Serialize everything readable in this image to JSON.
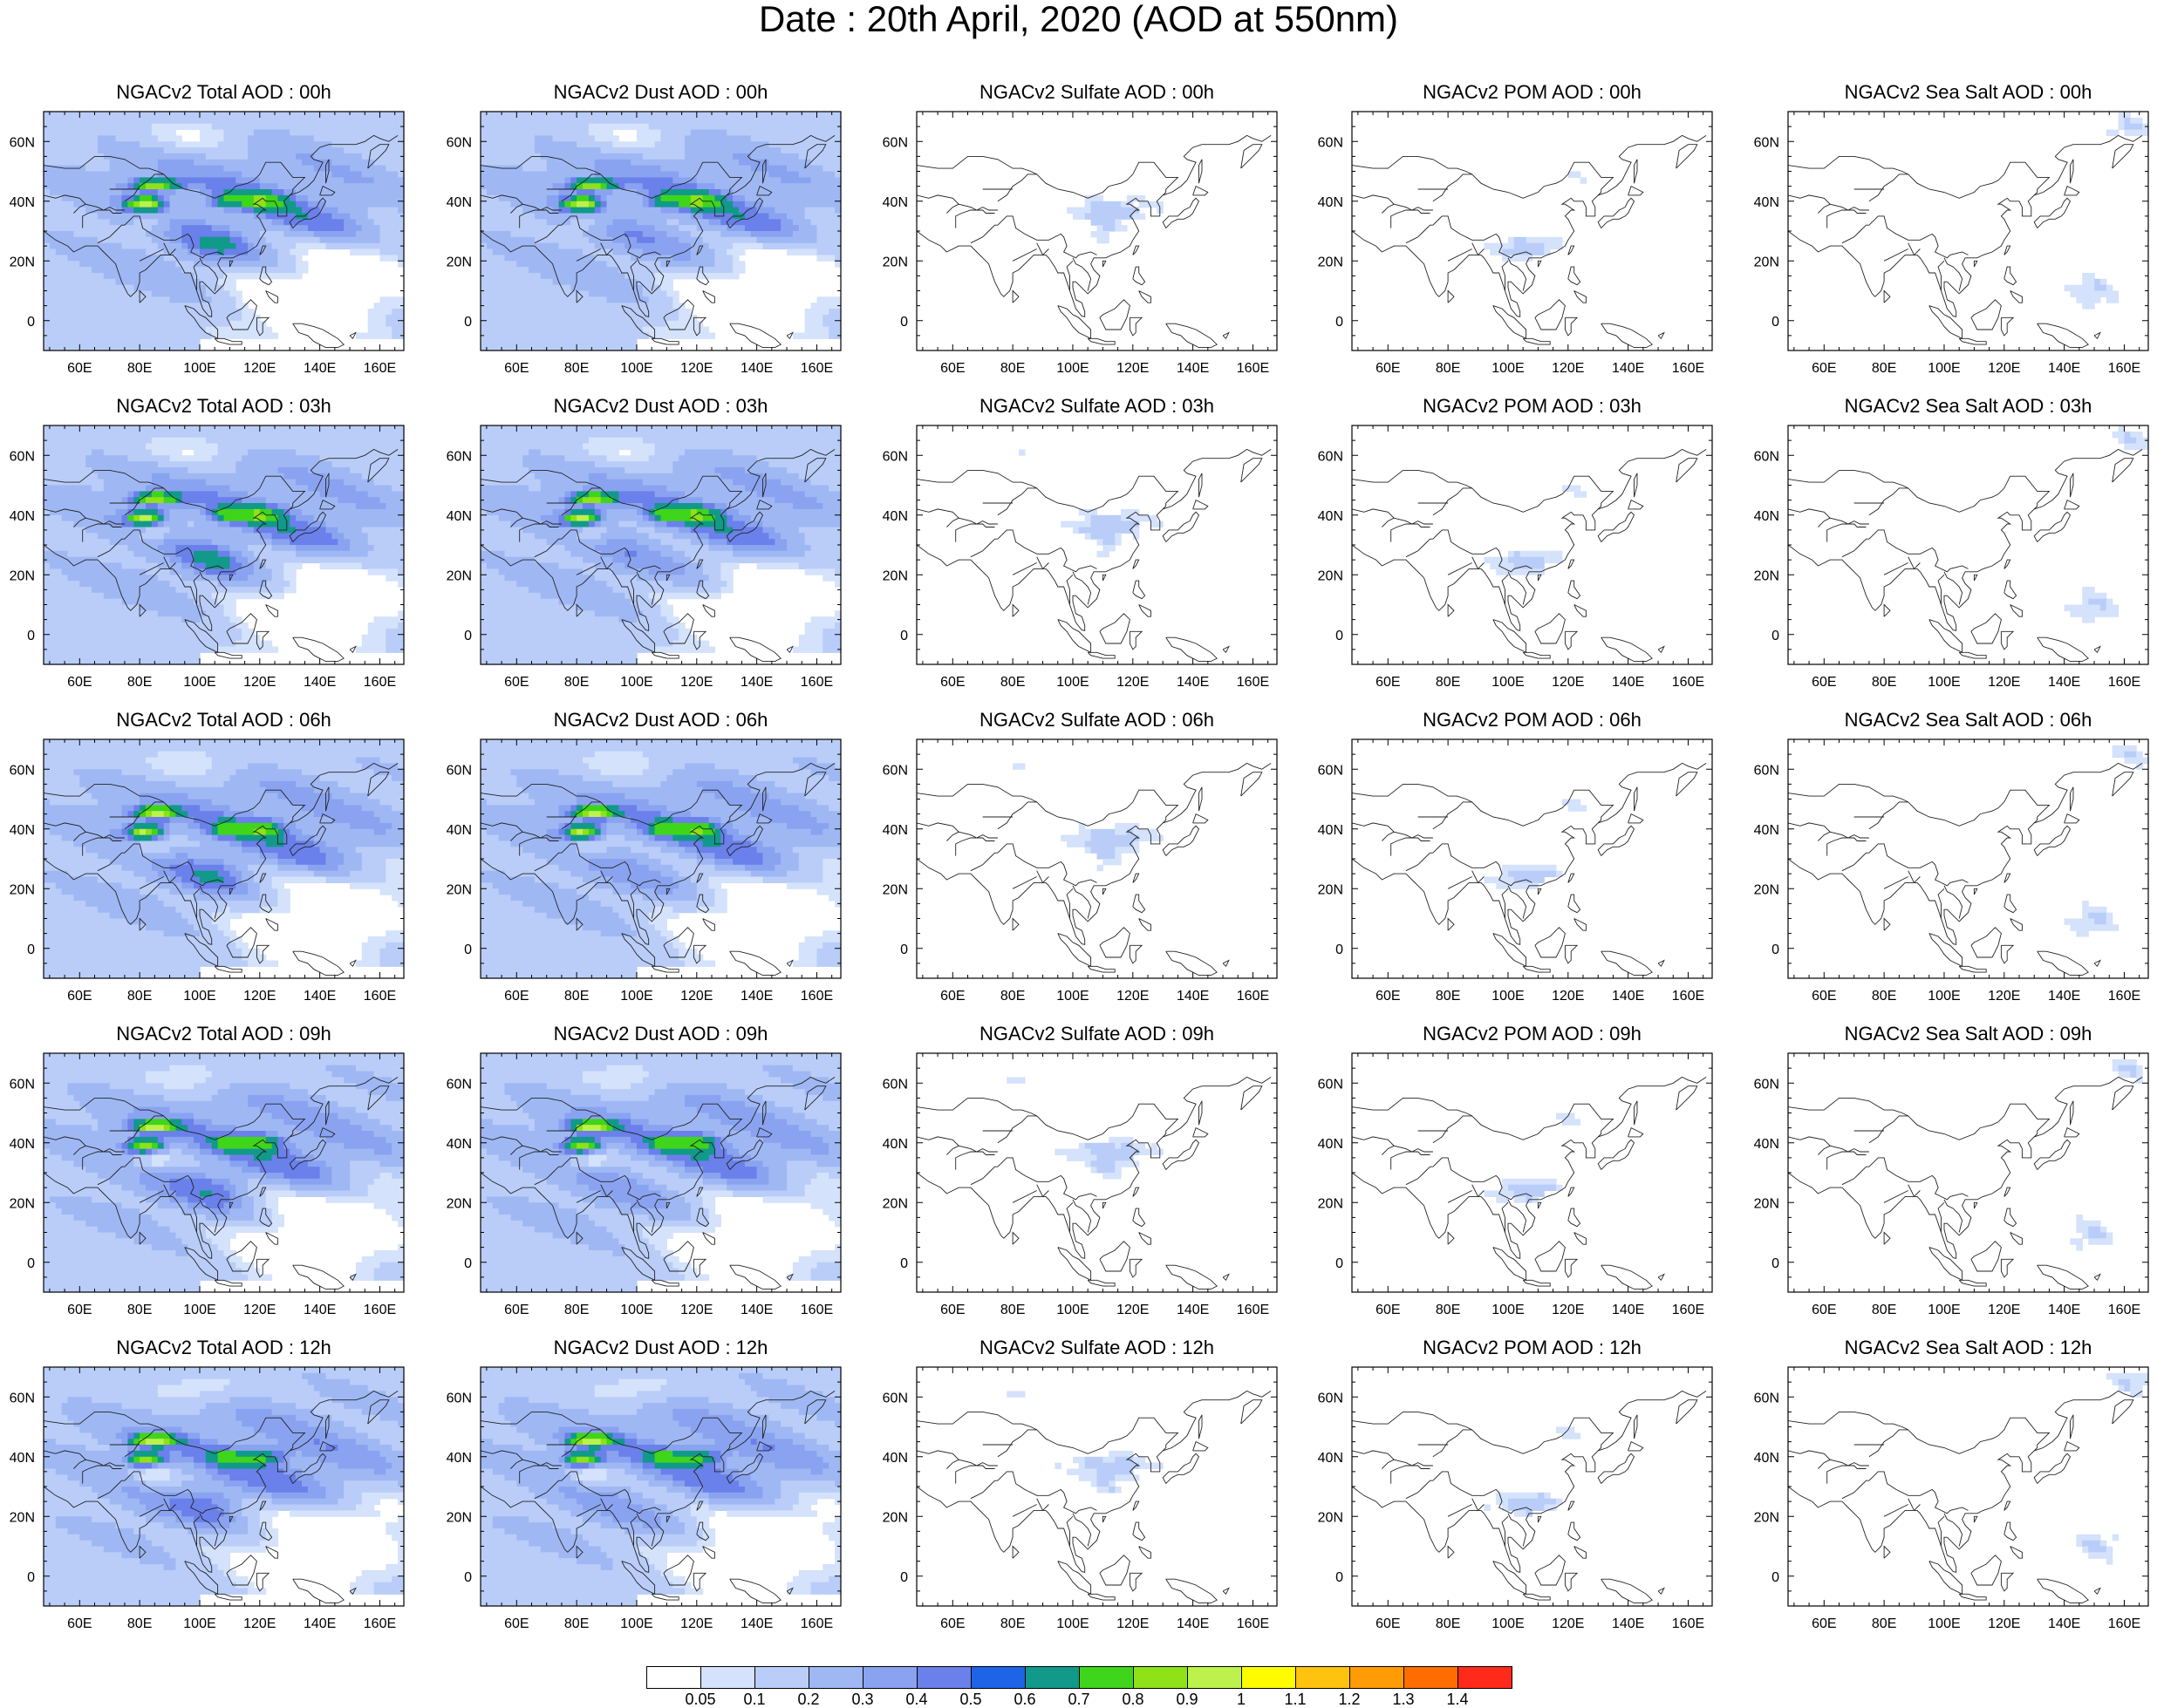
{
  "title": "Date : 20th April, 2020 (AOD at 550nm)",
  "colorbar": {
    "labels": [
      "0.05",
      "0.1",
      "0.2",
      "0.3",
      "0.4",
      "0.5",
      "0.6",
      "0.7",
      "0.8",
      "0.9",
      "1",
      "1.1",
      "1.2",
      "1.3",
      "1.4"
    ],
    "colors": [
      "#ffffff",
      "#d4e2fb",
      "#b9cdf8",
      "#9fb8f4",
      "#8aa3f0",
      "#6a80ea",
      "#1e64e6",
      "#11998a",
      "#3fd51a",
      "#8ee217",
      "#bdf24c",
      "#fffc00",
      "#ffc20f",
      "#ff9b05",
      "#ff6d00",
      "#ff2a1a"
    ]
  },
  "axes": {
    "lon_ticks": [
      "60E",
      "80E",
      "100E",
      "120E",
      "140E",
      "160E"
    ],
    "lat_ticks": [
      "60N",
      "40N",
      "20N",
      "0"
    ],
    "lon_range": [
      48,
      168
    ],
    "lat_range": [
      -10,
      70
    ]
  },
  "columns": [
    {
      "key": "total",
      "icon": "total-aod-map"
    },
    {
      "key": "dust",
      "icon": "dust-aod-map"
    },
    {
      "key": "sulfate",
      "icon": "sulfate-aod-map"
    },
    {
      "key": "pom",
      "icon": "pom-aod-map"
    },
    {
      "key": "seasalt",
      "icon": "seasalt-aod-map"
    }
  ],
  "panels": [
    [
      "NGACv2 Total AOD : 00h",
      "NGACv2 Dust AOD : 00h",
      "NGACv2 Sulfate AOD : 00h",
      "NGACv2 POM AOD : 00h",
      "NGACv2 Sea Salt AOD : 00h"
    ],
    [
      "NGACv2 Total AOD : 03h",
      "NGACv2 Dust AOD : 03h",
      "NGACv2 Sulfate AOD : 03h",
      "NGACv2 POM AOD : 03h",
      "NGACv2 Sea Salt AOD : 03h"
    ],
    [
      "NGACv2 Total AOD : 06h",
      "NGACv2 Dust AOD : 06h",
      "NGACv2 Sulfate AOD : 06h",
      "NGACv2 POM AOD : 06h",
      "NGACv2 Sea Salt AOD : 06h"
    ],
    [
      "NGACv2 Total AOD : 09h",
      "NGACv2 Dust AOD : 09h",
      "NGACv2 Sulfate AOD : 09h",
      "NGACv2 POM AOD : 09h",
      "NGACv2 Sea Salt  AOD : 09h"
    ],
    [
      "NGACv2 Total AOD  : 12h",
      "NGACv2 Dust AOD : 12h",
      "NGACv2 Sulfate AOD : 12h",
      "NGACv2 POM  AOD : 12h",
      "NGACv2 Sea Salt  AOD : 12h"
    ]
  ]
}
